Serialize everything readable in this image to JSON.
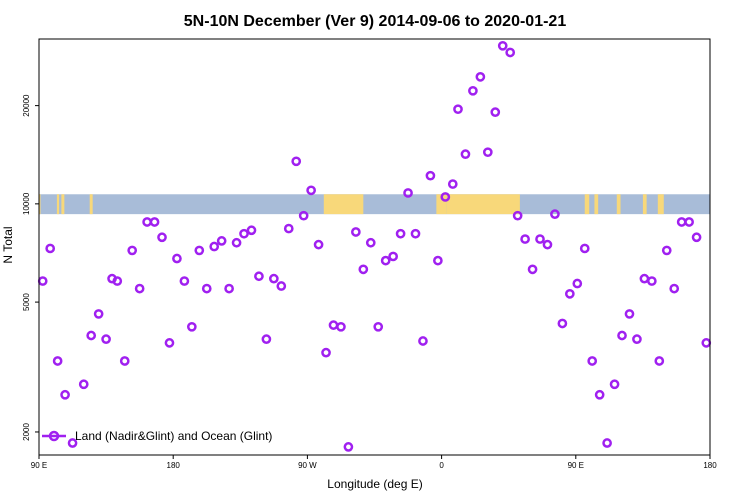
{
  "chart_data": {
    "type": "scatter",
    "title": "5N-10N December (Ver 9)   2014-09-06 to 2020-01-21",
    "xlabel": "Longitude (deg E)",
    "ylabel": "N Total",
    "y_scale": "log",
    "ylim": [
      1700,
      32000
    ],
    "xlim": [
      0,
      9
    ],
    "x_ticks": [
      {
        "pos": 0,
        "label": "90 E"
      },
      {
        "pos": 1.8,
        "label": "180"
      },
      {
        "pos": 3.6,
        "label": "90 W"
      },
      {
        "pos": 5.4,
        "label": "0"
      },
      {
        "pos": 7.2,
        "label": "90 E"
      },
      {
        "pos": 9,
        "label": "180"
      }
    ],
    "y_ticks": [
      2000,
      5000,
      10000,
      20000
    ],
    "y_tick_labels": [
      "2000",
      "5000",
      "10000",
      "20000"
    ],
    "legend": {
      "label": "Land (Nadir&Glint) and Ocean (Glint)",
      "position": "bottom-left"
    },
    "marker_color": "#A020F0",
    "band": {
      "y_range": [
        9300,
        10700
      ],
      "ocean_color": "#A8BCD8",
      "land_color": "#F8D87A"
    },
    "land_segments": [
      [
        0.0,
        0.02
      ],
      [
        0.24,
        0.27
      ],
      [
        0.3,
        0.34
      ],
      [
        0.68,
        0.72
      ],
      [
        3.82,
        4.35
      ],
      [
        5.33,
        5.47
      ],
      [
        5.47,
        6.45
      ],
      [
        7.32,
        7.38
      ],
      [
        7.45,
        7.5
      ],
      [
        7.75,
        7.8
      ],
      [
        8.1,
        8.15
      ],
      [
        8.3,
        8.38
      ]
    ],
    "series": [
      {
        "name": "Land (Nadir&Glint) and Ocean (Glint)",
        "points": [
          [
            0.05,
            5800
          ],
          [
            0.15,
            7300
          ],
          [
            0.25,
            3300
          ],
          [
            0.35,
            2600
          ],
          [
            0.45,
            1850
          ],
          [
            0.6,
            2800
          ],
          [
            0.7,
            3950
          ],
          [
            0.8,
            4600
          ],
          [
            0.9,
            3850
          ],
          [
            0.98,
            5900
          ],
          [
            1.05,
            5800
          ],
          [
            1.15,
            3300
          ],
          [
            1.25,
            7200
          ],
          [
            1.35,
            5500
          ],
          [
            1.45,
            8800
          ],
          [
            1.55,
            8800
          ],
          [
            1.65,
            7900
          ],
          [
            1.75,
            3750
          ],
          [
            1.85,
            6800
          ],
          [
            1.95,
            5800
          ],
          [
            2.05,
            4200
          ],
          [
            2.15,
            7200
          ],
          [
            2.25,
            5500
          ],
          [
            2.35,
            7400
          ],
          [
            2.45,
            7700
          ],
          [
            2.55,
            5500
          ],
          [
            2.65,
            7600
          ],
          [
            2.75,
            8100
          ],
          [
            2.85,
            8300
          ],
          [
            2.95,
            6000
          ],
          [
            3.05,
            3850
          ],
          [
            3.15,
            5900
          ],
          [
            3.25,
            5600
          ],
          [
            3.35,
            8400
          ],
          [
            3.45,
            13500
          ],
          [
            3.55,
            9200
          ],
          [
            3.65,
            11000
          ],
          [
            3.75,
            7500
          ],
          [
            3.85,
            3500
          ],
          [
            3.95,
            4250
          ],
          [
            4.05,
            4200
          ],
          [
            4.15,
            1800
          ],
          [
            4.25,
            8200
          ],
          [
            4.35,
            6300
          ],
          [
            4.45,
            7600
          ],
          [
            4.55,
            4200
          ],
          [
            4.65,
            6700
          ],
          [
            4.75,
            6900
          ],
          [
            4.85,
            8100
          ],
          [
            4.95,
            10800
          ],
          [
            5.05,
            8100
          ],
          [
            5.15,
            3800
          ],
          [
            5.25,
            12200
          ],
          [
            5.35,
            6700
          ],
          [
            5.45,
            10500
          ],
          [
            5.55,
            11500
          ],
          [
            5.62,
            19500
          ],
          [
            5.72,
            14200
          ],
          [
            5.82,
            22200
          ],
          [
            5.92,
            24500
          ],
          [
            6.02,
            14400
          ],
          [
            6.12,
            19100
          ],
          [
            6.22,
            30500
          ],
          [
            6.32,
            29100
          ],
          [
            6.42,
            9200
          ],
          [
            6.52,
            7800
          ],
          [
            6.62,
            6300
          ],
          [
            6.72,
            7800
          ],
          [
            6.82,
            7500
          ],
          [
            6.92,
            9300
          ],
          [
            7.02,
            4300
          ],
          [
            7.12,
            5300
          ],
          [
            7.22,
            5700
          ],
          [
            7.32,
            7300
          ],
          [
            7.42,
            3300
          ],
          [
            7.52,
            2600
          ],
          [
            7.62,
            1850
          ],
          [
            7.72,
            2800
          ],
          [
            7.82,
            3950
          ],
          [
            7.92,
            4600
          ],
          [
            8.02,
            3850
          ],
          [
            8.12,
            5900
          ],
          [
            8.22,
            5800
          ],
          [
            8.32,
            3300
          ],
          [
            8.42,
            7200
          ],
          [
            8.52,
            5500
          ],
          [
            8.62,
            8800
          ],
          [
            8.72,
            8800
          ],
          [
            8.82,
            7900
          ],
          [
            8.95,
            3750
          ]
        ]
      }
    ]
  }
}
